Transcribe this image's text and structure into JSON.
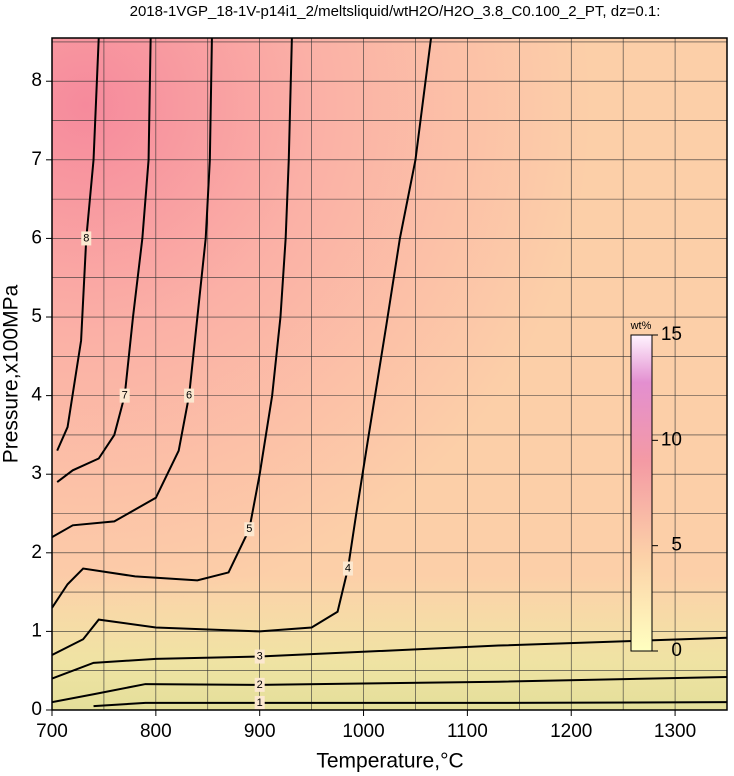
{
  "chart_data": {
    "type": "contour",
    "title": "2018-1VGP_18-1V-p14i1_2/meltsliquid/wtH2O/H2O_3.8_C0.100_2_PT, dz=0.1:",
    "x_label": "Temperature,°C",
    "y_label": "Pressure,x100MPa",
    "xlim": [
      700,
      1350
    ],
    "ylim": [
      0,
      8.55
    ],
    "xticks": [
      700,
      800,
      900,
      1000,
      1100,
      1200,
      1300
    ],
    "yticks": [
      0,
      1,
      2,
      3,
      4,
      5,
      6,
      7,
      8
    ],
    "xgrid": [
      750,
      800,
      850,
      900,
      950,
      1000,
      1050,
      1100,
      1150,
      1200,
      1250,
      1300
    ],
    "ygrid": [
      0.5,
      1,
      1.5,
      2,
      2.5,
      3,
      3.5,
      4,
      4.5,
      5,
      5.5,
      6,
      6.5,
      7,
      7.5,
      8,
      8.5
    ],
    "grid": true,
    "colorbar": {
      "label": "wt%",
      "lim": [
        0,
        15
      ],
      "ticks": [
        0,
        5,
        10,
        15
      ]
    },
    "contours": [
      {
        "level": 1,
        "x": [
          740,
          790,
          900,
          1130,
          1350
        ],
        "y": [
          0.05,
          0.09,
          0.09,
          0.09,
          0.1
        ]
      },
      {
        "level": 2,
        "x": [
          700,
          740,
          790,
          900,
          1130,
          1350
        ],
        "y": [
          0.1,
          0.2,
          0.33,
          0.32,
          0.36,
          0.42
        ]
      },
      {
        "level": 3,
        "x": [
          700,
          740,
          800,
          900,
          1130,
          1350
        ],
        "y": [
          0.4,
          0.6,
          0.65,
          0.68,
          0.82,
          0.92
        ]
      },
      {
        "level": 4,
        "x": [
          700,
          730,
          745,
          800,
          900,
          950,
          975,
          985,
          993,
          1005,
          1022,
          1035,
          1050,
          1065
        ],
        "y": [
          0.7,
          0.9,
          1.15,
          1.05,
          1.0,
          1.05,
          1.25,
          1.8,
          2.5,
          3.5,
          4.9,
          6,
          7,
          8.55
        ]
      },
      {
        "level": 5,
        "x": [
          700,
          715,
          730,
          780,
          840,
          870,
          890,
          900,
          912,
          920,
          925,
          928,
          931
        ],
        "y": [
          1.3,
          1.6,
          1.8,
          1.7,
          1.65,
          1.75,
          2.3,
          3,
          4,
          5,
          6,
          7,
          8.55
        ]
      },
      {
        "level": 6,
        "x": [
          700,
          720,
          760,
          800,
          822,
          832,
          840,
          848,
          852,
          854
        ],
        "y": [
          2.2,
          2.35,
          2.4,
          2.7,
          3.3,
          4,
          5,
          6,
          7,
          8.55
        ]
      },
      {
        "level": 7,
        "x": [
          705,
          720,
          745,
          760,
          770,
          778,
          787,
          793,
          795
        ],
        "y": [
          2.9,
          3.05,
          3.2,
          3.5,
          4,
          5,
          6,
          7,
          8.55
        ]
      },
      {
        "level": 8,
        "x": [
          705,
          715,
          728,
          733,
          740,
          745
        ],
        "y": [
          3.3,
          3.6,
          4.7,
          6,
          7,
          8.55
        ]
      }
    ]
  }
}
